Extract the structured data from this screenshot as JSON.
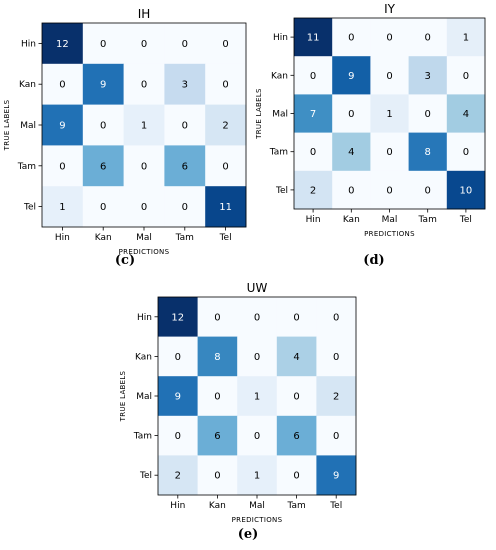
{
  "chart_data": [
    {
      "type": "heatmap",
      "title": "IH",
      "caption": "(c)",
      "xlabel": "PREDICTIONS",
      "ylabel": "TRUE LABELS",
      "x_categories": [
        "Hin",
        "Kan",
        "Mal",
        "Tam",
        "Tel"
      ],
      "y_categories": [
        "Hin",
        "Kan",
        "Mal",
        "Tam",
        "Tel"
      ],
      "values": [
        [
          12,
          0,
          0,
          0,
          0
        ],
        [
          0,
          9,
          0,
          3,
          0
        ],
        [
          9,
          0,
          1,
          0,
          2
        ],
        [
          0,
          6,
          0,
          6,
          0
        ],
        [
          1,
          0,
          0,
          0,
          11
        ]
      ],
      "vmax": 12,
      "colormap": "Blues"
    },
    {
      "type": "heatmap",
      "title": "IY",
      "caption": "(d)",
      "xlabel": "PREDICTIONS",
      "ylabel": "TRUE LABELS",
      "x_categories": [
        "Hin",
        "Kan",
        "Mal",
        "Tam",
        "Tel"
      ],
      "y_categories": [
        "Hin",
        "Kan",
        "Mal",
        "Tam",
        "Tel"
      ],
      "values": [
        [
          11,
          0,
          0,
          0,
          1
        ],
        [
          0,
          9,
          0,
          3,
          0
        ],
        [
          7,
          0,
          1,
          0,
          4
        ],
        [
          0,
          4,
          0,
          8,
          0
        ],
        [
          2,
          0,
          0,
          0,
          10
        ]
      ],
      "vmax": 11,
      "colormap": "Blues"
    },
    {
      "type": "heatmap",
      "title": "UW",
      "caption": "(e)",
      "xlabel": "PREDICTIONS",
      "ylabel": "TRUE LABELS",
      "x_categories": [
        "Hin",
        "Kan",
        "Mal",
        "Tam",
        "Tel"
      ],
      "y_categories": [
        "Hin",
        "Kan",
        "Mal",
        "Tam",
        "Tel"
      ],
      "values": [
        [
          12,
          0,
          0,
          0,
          0
        ],
        [
          0,
          8,
          0,
          4,
          0
        ],
        [
          9,
          0,
          1,
          0,
          2
        ],
        [
          0,
          6,
          0,
          6,
          0
        ],
        [
          2,
          0,
          1,
          0,
          9
        ]
      ],
      "vmax": 12,
      "colormap": "Blues"
    }
  ]
}
